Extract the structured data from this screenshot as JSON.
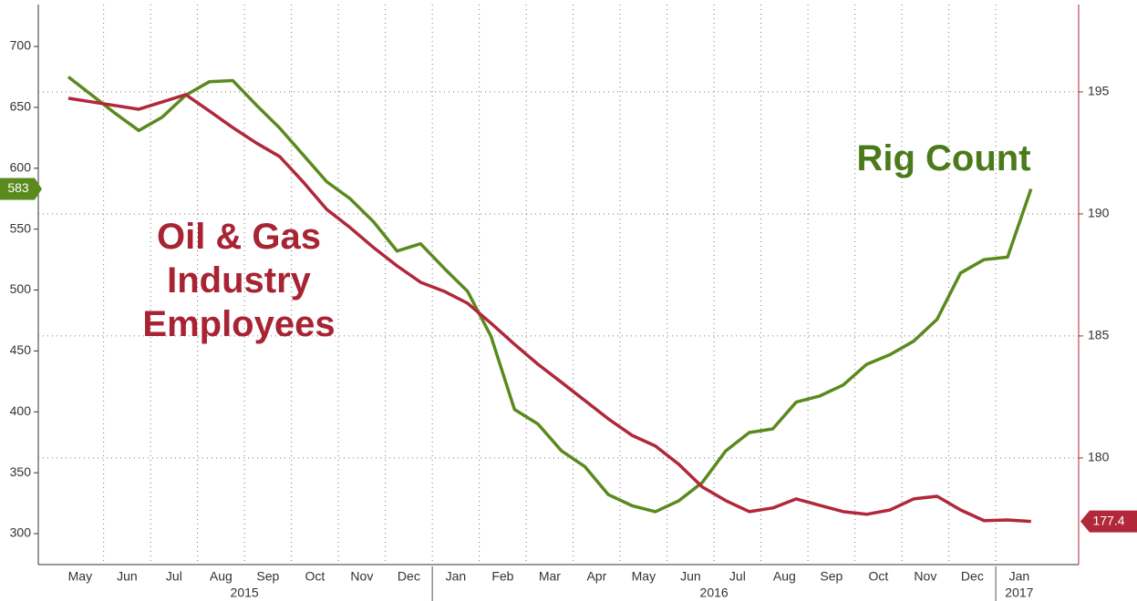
{
  "chart_data": {
    "type": "line",
    "categories": [
      "May",
      null,
      "Jun",
      null,
      "Jul",
      null,
      "Aug",
      null,
      "Sep",
      null,
      "Oct",
      null,
      "Nov",
      null,
      "Dec",
      null,
      "Jan",
      null,
      "Feb",
      null,
      "Mar",
      null,
      "Apr",
      null,
      "May",
      null,
      "Jun",
      null,
      "Jul",
      null,
      "Aug",
      null,
      "Sep",
      null,
      "Oct",
      null,
      "Nov",
      null,
      "Dec",
      null,
      "Jan",
      null
    ],
    "years": [
      "2015",
      "2016",
      "2017"
    ],
    "series": [
      {
        "color": "#5a8a1e",
        "axis": "y",
        "values": [
          675,
          660,
          645,
          631,
          642,
          660,
          671,
          672,
          652,
          633,
          611,
          589,
          575,
          556,
          532,
          538,
          518,
          499,
          462,
          402,
          390,
          368,
          355,
          332,
          323,
          318,
          327,
          342,
          368,
          383,
          386,
          408,
          413,
          422,
          439,
          447,
          458,
          476,
          514,
          525,
          527,
          583
        ]
      },
      {
        "color": "#b0283a",
        "axis": "y2",
        "values": [
          194.74,
          194.59,
          194.44,
          194.29,
          194.59,
          194.89,
          194.22,
          193.54,
          192.91,
          192.35,
          191.31,
          190.19,
          189.44,
          188.62,
          187.87,
          187.2,
          186.83,
          186.34,
          185.52,
          184.66,
          183.84,
          183.1,
          182.35,
          181.6,
          180.93,
          180.49,
          179.74,
          178.81,
          178.25,
          177.8,
          177.95,
          178.32,
          178.06,
          177.8,
          177.69,
          177.87,
          178.32,
          178.43,
          177.87,
          177.43,
          177.46,
          177.4
        ]
      }
    ],
    "annotations": [
      {
        "lines": [
          "Rig Count"
        ],
        "color": "#4a7a1a"
      },
      {
        "lines": [
          "Oil & Gas",
          "Industry",
          "Employees"
        ],
        "color": "#a82333"
      }
    ],
    "ylim": [
      274.6,
      734.4
    ],
    "yticks": [
      300,
      350,
      400,
      450,
      500,
      550,
      600,
      650,
      700
    ],
    "y2lim": [
      175.63,
      198.58
    ],
    "y2ticks": [
      180,
      185,
      190,
      195
    ],
    "grid": true
  }
}
